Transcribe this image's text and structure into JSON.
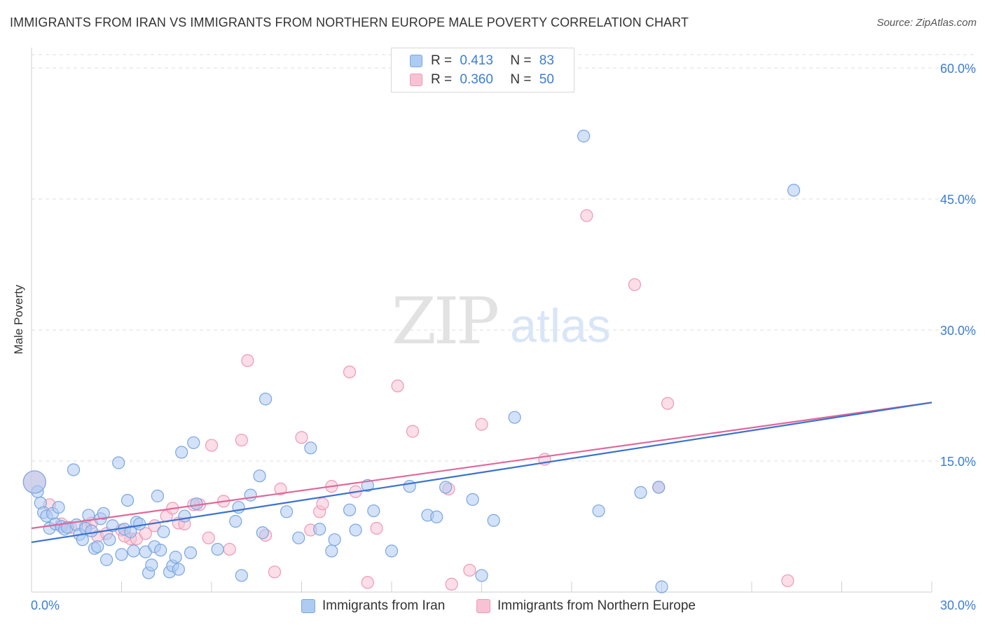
{
  "title": "IMMIGRANTS FROM IRAN VS IMMIGRANTS FROM NORTHERN EUROPE MALE POVERTY CORRELATION CHART",
  "source": "Source: ZipAtlas.com",
  "watermark": {
    "zip": "ZIP",
    "atlas": "atlas"
  },
  "legend_top": {
    "rows": [
      {
        "r_label": "R =",
        "r_value": "0.413",
        "n_label": "N =",
        "n_value": "83"
      },
      {
        "r_label": "R =",
        "r_value": "0.360",
        "n_label": "N =",
        "n_value": "50"
      }
    ]
  },
  "legend_bottom": {
    "items": [
      {
        "label": "Immigrants from Iran"
      },
      {
        "label": "Immigrants from Northern Europe"
      }
    ]
  },
  "colors": {
    "iran_fill": "#aecbf2",
    "iran_stroke": "#7aa6e0",
    "iran_line": "#3a72d0",
    "ne_fill": "#f7c3d4",
    "ne_stroke": "#ee98b5",
    "ne_line": "#e0679a",
    "tick_label": "#3b7dd8",
    "grid": "#dddddd"
  },
  "chart_data": {
    "type": "scatter",
    "title": "IMMIGRANTS FROM IRAN VS IMMIGRANTS FROM NORTHERN EUROPE MALE POVERTY CORRELATION CHART",
    "xlabel": "",
    "ylabel": "Male Poverty",
    "xlim": [
      0,
      30
    ],
    "ylim": [
      0,
      60
    ],
    "y_ticks": [
      {
        "value": 15,
        "label": "15.0%"
      },
      {
        "value": 30,
        "label": "30.0%"
      },
      {
        "value": 45,
        "label": "45.0%"
      },
      {
        "value": 60,
        "label": "60.0%"
      }
    ],
    "x_ticks": [
      {
        "value": 0,
        "label": "0.0%"
      },
      {
        "value": 30,
        "label": "30.0%"
      }
    ],
    "grid": true,
    "series": [
      {
        "name": "Immigrants from Iran",
        "trend": [
          [
            0,
            5.7
          ],
          [
            30,
            21.7
          ]
        ],
        "points": [
          [
            0.2,
            11.5
          ],
          [
            0.3,
            10.2
          ],
          [
            0.4,
            9.1
          ],
          [
            0.5,
            8.7
          ],
          [
            0.6,
            7.3
          ],
          [
            0.7,
            9.0
          ],
          [
            0.8,
            7.8
          ],
          [
            0.9,
            9.7
          ],
          [
            1.0,
            7.5
          ],
          [
            1.1,
            7.2
          ],
          [
            1.2,
            7.4
          ],
          [
            1.4,
            14.0
          ],
          [
            1.5,
            7.7
          ],
          [
            1.6,
            6.6
          ],
          [
            1.7,
            6.0
          ],
          [
            1.8,
            7.3
          ],
          [
            1.9,
            8.8
          ],
          [
            2.0,
            7.0
          ],
          [
            2.1,
            5.0
          ],
          [
            2.2,
            5.2
          ],
          [
            2.3,
            8.4
          ],
          [
            2.4,
            9.0
          ],
          [
            2.5,
            3.7
          ],
          [
            2.6,
            6.0
          ],
          [
            2.7,
            7.6
          ],
          [
            2.9,
            14.8
          ],
          [
            3.0,
            4.3
          ],
          [
            3.1,
            7.2
          ],
          [
            3.2,
            10.5
          ],
          [
            3.3,
            6.9
          ],
          [
            3.4,
            4.7
          ],
          [
            3.5,
            8.0
          ],
          [
            3.6,
            7.8
          ],
          [
            3.8,
            4.6
          ],
          [
            3.9,
            2.2
          ],
          [
            4.0,
            3.1
          ],
          [
            4.1,
            5.2
          ],
          [
            4.2,
            11.0
          ],
          [
            4.3,
            4.8
          ],
          [
            4.4,
            6.9
          ],
          [
            4.6,
            2.3
          ],
          [
            4.7,
            3.0
          ],
          [
            4.8,
            4.0
          ],
          [
            4.9,
            2.6
          ],
          [
            5.0,
            16.0
          ],
          [
            5.1,
            8.7
          ],
          [
            5.3,
            4.5
          ],
          [
            5.4,
            17.1
          ],
          [
            5.5,
            10.1
          ],
          [
            6.2,
            4.9
          ],
          [
            6.8,
            8.1
          ],
          [
            6.9,
            9.7
          ],
          [
            7.0,
            1.9
          ],
          [
            7.3,
            11.1
          ],
          [
            7.6,
            13.3
          ],
          [
            7.7,
            6.8
          ],
          [
            7.8,
            22.1
          ],
          [
            8.5,
            9.2
          ],
          [
            8.9,
            6.2
          ],
          [
            9.3,
            16.5
          ],
          [
            9.6,
            7.2
          ],
          [
            10.0,
            4.7
          ],
          [
            10.1,
            6.0
          ],
          [
            10.6,
            9.4
          ],
          [
            10.8,
            7.1
          ],
          [
            11.2,
            12.2
          ],
          [
            11.4,
            9.3
          ],
          [
            12.0,
            4.7
          ],
          [
            12.6,
            12.1
          ],
          [
            13.2,
            8.8
          ],
          [
            13.5,
            8.6
          ],
          [
            13.8,
            12.0
          ],
          [
            14.7,
            10.6
          ],
          [
            15.0,
            1.9
          ],
          [
            15.4,
            8.2
          ],
          [
            16.1,
            20.0
          ],
          [
            18.4,
            52.2
          ],
          [
            18.9,
            9.3
          ],
          [
            20.3,
            11.4
          ],
          [
            20.9,
            12.0
          ],
          [
            21.0,
            0.6
          ],
          [
            25.4,
            46.0
          ],
          [
            0.1,
            12.6
          ]
        ]
      },
      {
        "name": "Immigrants from Northern Europe",
        "trend": [
          [
            0,
            7.3
          ],
          [
            30,
            21.7
          ]
        ],
        "points": [
          [
            0.1,
            12.6
          ],
          [
            0.6,
            10.0
          ],
          [
            1.0,
            7.8
          ],
          [
            1.3,
            7.4
          ],
          [
            1.8,
            7.6
          ],
          [
            2.0,
            7.9
          ],
          [
            2.2,
            6.4
          ],
          [
            2.5,
            6.7
          ],
          [
            3.0,
            7.1
          ],
          [
            3.3,
            6.1
          ],
          [
            3.5,
            6.1
          ],
          [
            3.8,
            6.7
          ],
          [
            4.1,
            7.6
          ],
          [
            4.5,
            8.7
          ],
          [
            4.7,
            9.6
          ],
          [
            4.9,
            7.9
          ],
          [
            5.1,
            7.8
          ],
          [
            5.6,
            10.0
          ],
          [
            5.9,
            6.2
          ],
          [
            6.0,
            16.8
          ],
          [
            6.4,
            10.4
          ],
          [
            6.6,
            4.9
          ],
          [
            7.0,
            17.4
          ],
          [
            7.2,
            26.5
          ],
          [
            7.8,
            6.5
          ],
          [
            8.1,
            2.3
          ],
          [
            8.3,
            11.8
          ],
          [
            9.0,
            17.7
          ],
          [
            9.3,
            7.1
          ],
          [
            9.6,
            9.2
          ],
          [
            9.7,
            10.1
          ],
          [
            10.0,
            12.1
          ],
          [
            10.6,
            25.2
          ],
          [
            10.8,
            11.5
          ],
          [
            11.5,
            7.3
          ],
          [
            11.2,
            1.1
          ],
          [
            12.2,
            23.6
          ],
          [
            12.7,
            18.4
          ],
          [
            13.9,
            11.8
          ],
          [
            14.0,
            0.9
          ],
          [
            14.6,
            2.5
          ],
          [
            15.0,
            19.2
          ],
          [
            17.1,
            15.2
          ],
          [
            18.5,
            43.1
          ],
          [
            20.1,
            35.2
          ],
          [
            20.9,
            12.0
          ],
          [
            21.2,
            21.6
          ],
          [
            25.2,
            1.3
          ],
          [
            5.4,
            10.0
          ],
          [
            3.1,
            6.4
          ]
        ]
      }
    ]
  }
}
